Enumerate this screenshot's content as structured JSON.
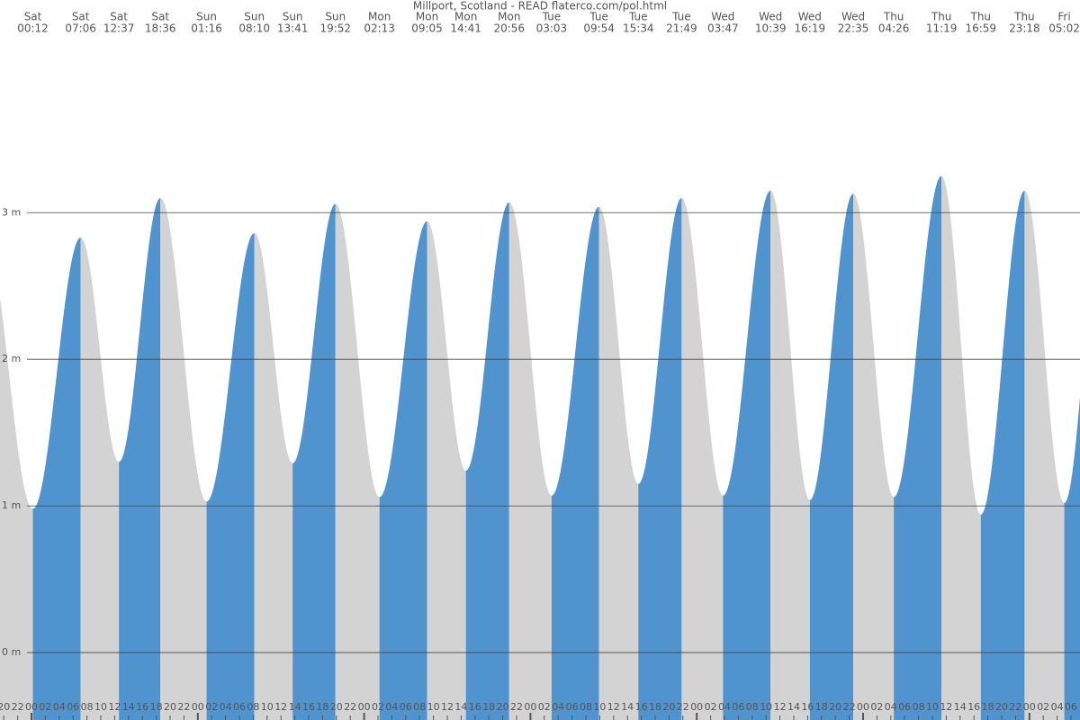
{
  "chart_data": {
    "type": "tide",
    "title": "Millport, Scotland - READ flaterco.com/pol.html",
    "events": [
      {
        "day": "Sat",
        "time": "00:12",
        "height": 0.98
      },
      {
        "day": "Sat",
        "time": "07:06",
        "height": 2.83
      },
      {
        "day": "Sat",
        "time": "12:37",
        "height": 1.3
      },
      {
        "day": "Sat",
        "time": "18:36",
        "height": 3.1
      },
      {
        "day": "Sun",
        "time": "01:16",
        "height": 1.03
      },
      {
        "day": "Sun",
        "time": "08:10",
        "height": 2.86
      },
      {
        "day": "Sun",
        "time": "13:41",
        "height": 1.29
      },
      {
        "day": "Sun",
        "time": "19:52",
        "height": 3.06
      },
      {
        "day": "Mon",
        "time": "02:13",
        "height": 1.06
      },
      {
        "day": "Mon",
        "time": "09:05",
        "height": 2.94
      },
      {
        "day": "Mon",
        "time": "14:41",
        "height": 1.24
      },
      {
        "day": "Mon",
        "time": "20:56",
        "height": 3.07
      },
      {
        "day": "Tue",
        "time": "03:03",
        "height": 1.07
      },
      {
        "day": "Tue",
        "time": "09:54",
        "height": 3.04
      },
      {
        "day": "Tue",
        "time": "15:34",
        "height": 1.15
      },
      {
        "day": "Tue",
        "time": "21:49",
        "height": 3.1
      },
      {
        "day": "Wed",
        "time": "03:47",
        "height": 1.07
      },
      {
        "day": "Wed",
        "time": "10:39",
        "height": 3.15
      },
      {
        "day": "Wed",
        "time": "16:19",
        "height": 1.04
      },
      {
        "day": "Wed",
        "time": "22:35",
        "height": 3.13
      },
      {
        "day": "Thu",
        "time": "04:26",
        "height": 1.06
      },
      {
        "day": "Thu",
        "time": "11:19",
        "height": 3.25
      },
      {
        "day": "Thu",
        "time": "16:59",
        "height": 0.94
      },
      {
        "day": "Thu",
        "time": "23:18",
        "height": 3.15
      },
      {
        "day": "Fri",
        "time": "05:02",
        "height": 1.02
      }
    ],
    "rising_color": "#4f94cf",
    "falling_color": "#d3d3d3",
    "ylim": [
      -0.46,
      4.45
    ],
    "yticks": [
      {
        "value": 0,
        "label": "0 m"
      },
      {
        "value": 1,
        "label": "1 m"
      },
      {
        "value": 2,
        "label": "2 m"
      },
      {
        "value": 3,
        "label": "3 m"
      }
    ],
    "grid": true,
    "xticks": [
      "20",
      "22",
      "00",
      "02",
      "04",
      "06",
      "08",
      "10",
      "12",
      "14",
      "16",
      "18",
      "20",
      "22",
      "00",
      "02",
      "04",
      "06",
      "08",
      "10",
      "12",
      "14",
      "16",
      "18",
      "20",
      "22",
      "00",
      "02",
      "04",
      "06",
      "08",
      "10",
      "12",
      "14",
      "16",
      "18",
      "20",
      "22",
      "00",
      "02",
      "04",
      "06",
      "08",
      "10",
      "12",
      "14",
      "16",
      "18",
      "20",
      "22",
      "00",
      "02",
      "04",
      "06",
      "08",
      "10",
      "12",
      "14",
      "16",
      "18",
      "20",
      "22",
      "00",
      "02",
      "04",
      "06",
      "08",
      "10",
      "12",
      "14",
      "16",
      "18",
      "20",
      "22",
      "00",
      "02",
      "04",
      "06"
    ]
  }
}
